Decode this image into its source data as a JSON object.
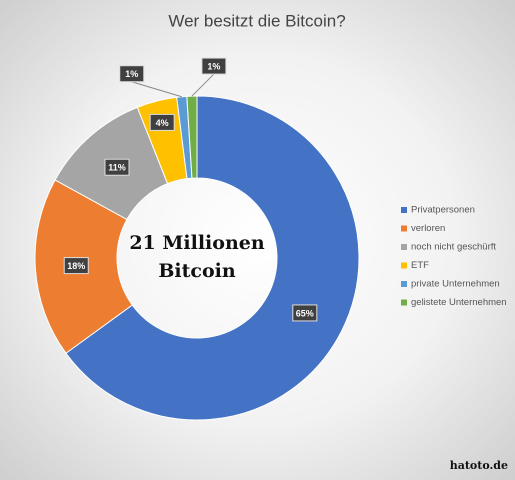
{
  "chart_data": {
    "type": "donut",
    "title": "Wer besitzt die Bitcoin?",
    "center_text": [
      "21 Millionen",
      "Bitcoin"
    ],
    "categories": [
      "Privatpersonen",
      "verloren",
      "noch nicht geschürft",
      "ETF",
      "private Unternehmen",
      "gelistete Unternehmen"
    ],
    "values": [
      65,
      18,
      11,
      4,
      1,
      1
    ],
    "value_labels": [
      "65%",
      "18%",
      "11%",
      "4%",
      "1%",
      "1%"
    ],
    "colors": [
      "#4472c4",
      "#ed7d31",
      "#a5a5a5",
      "#ffc000",
      "#5b9bd5",
      "#70ad47"
    ],
    "legend": "right",
    "source": "hatoto.de"
  }
}
